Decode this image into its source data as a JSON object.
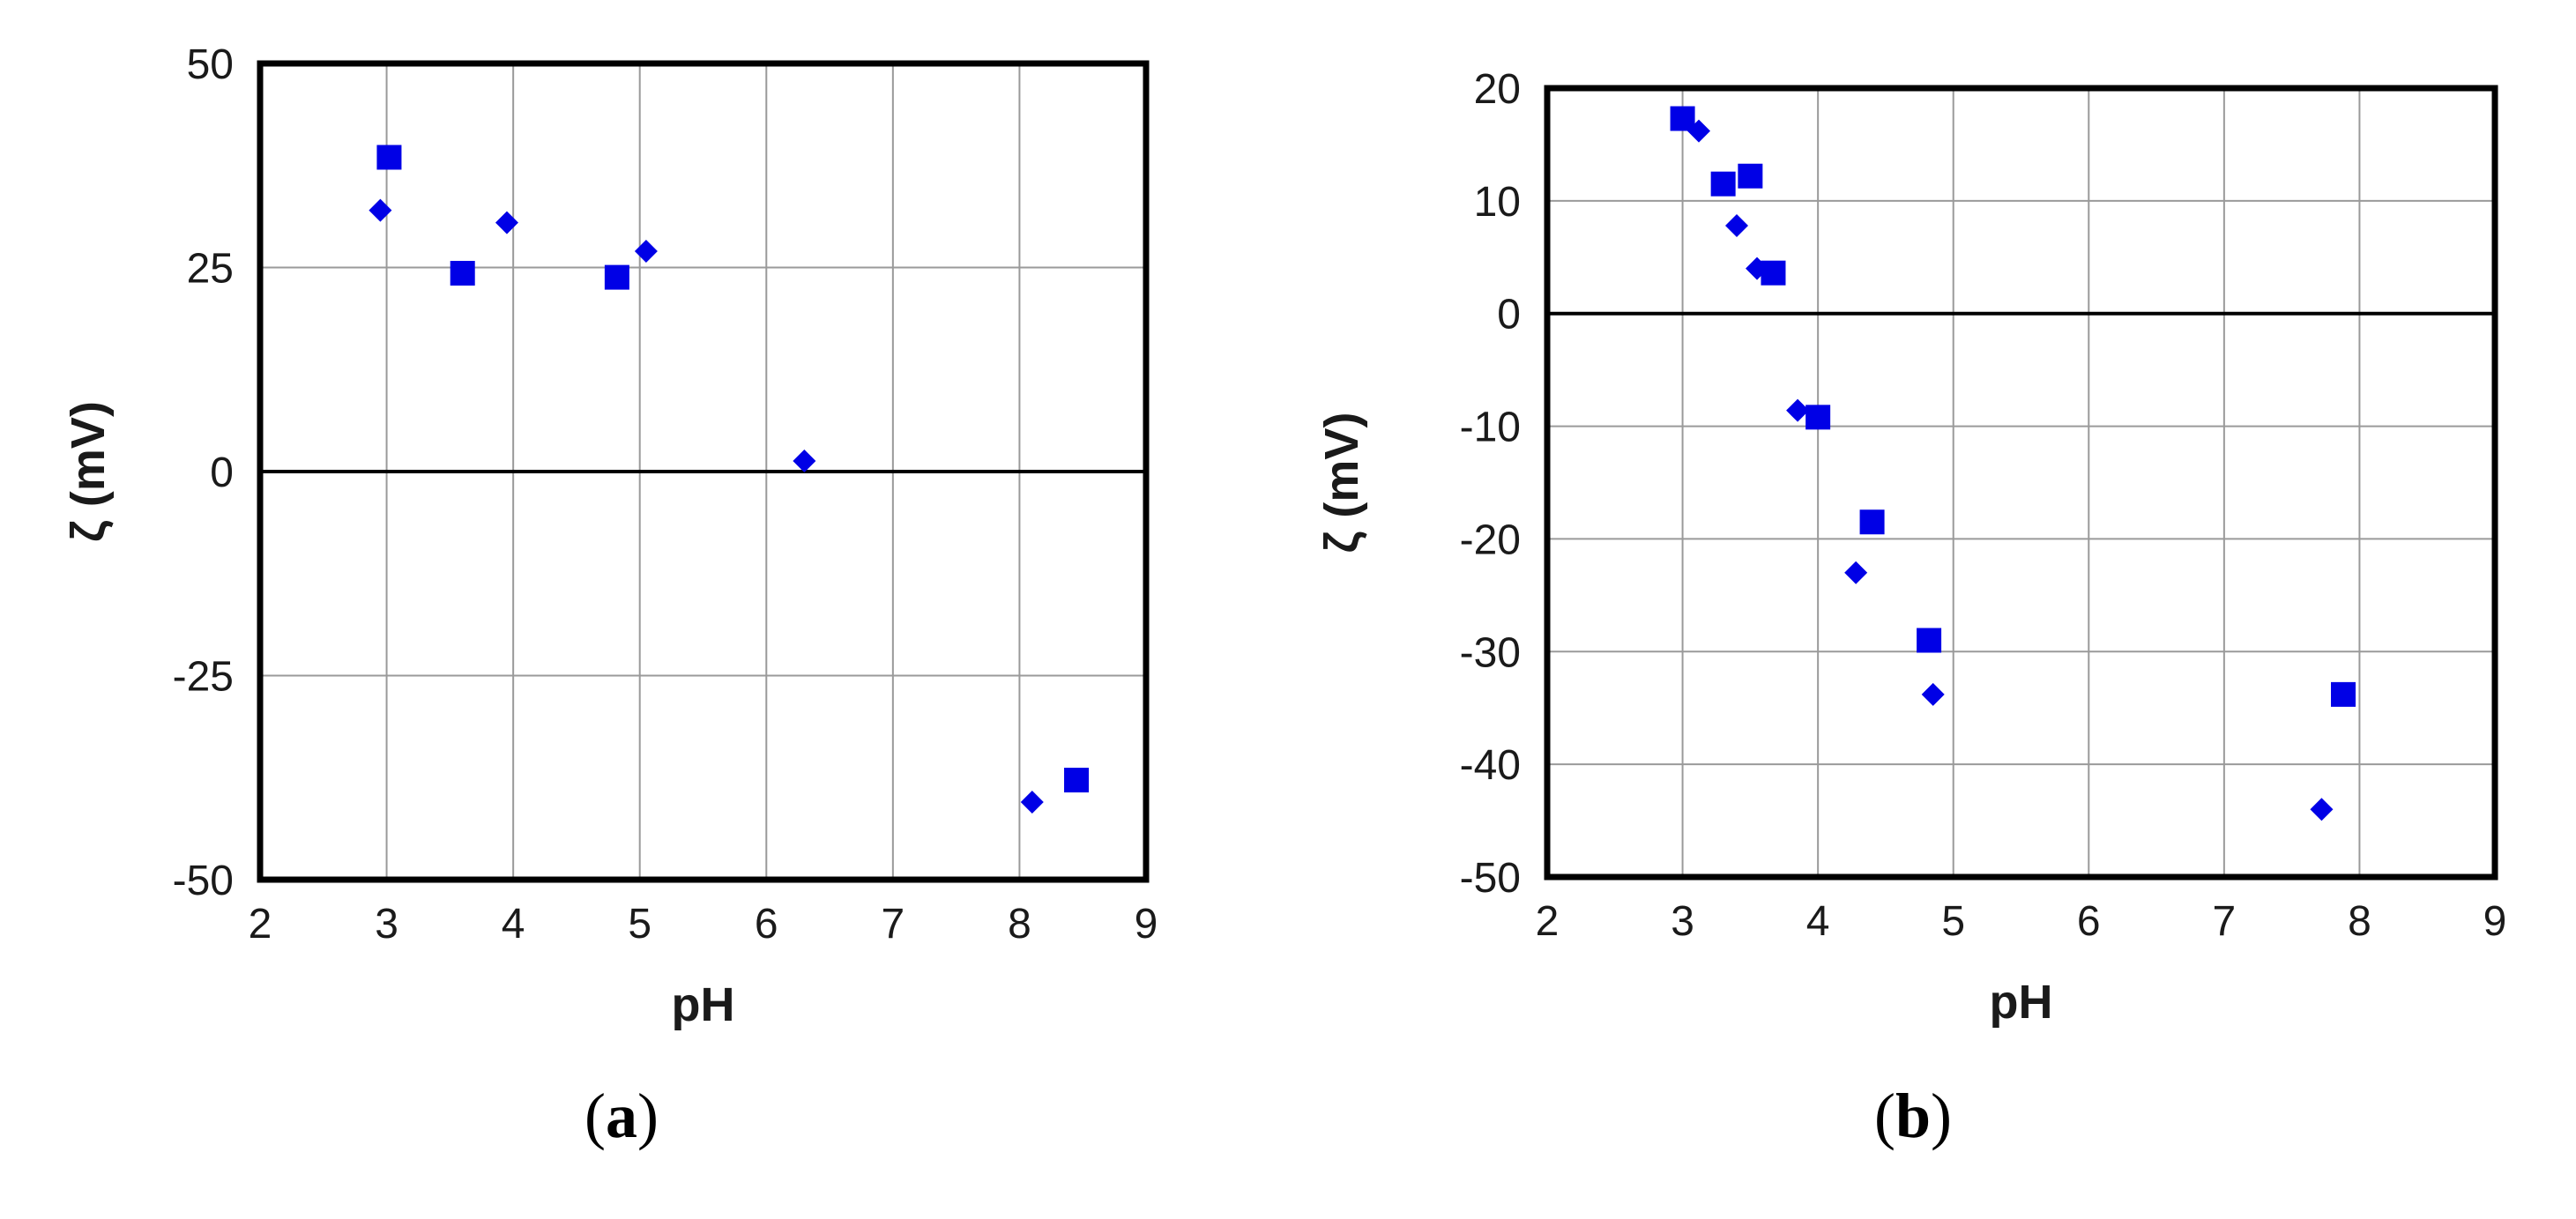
{
  "chart_data": [
    {
      "type": "scatter",
      "panel_label": "a",
      "xlabel": "pH",
      "ylabel": "ζ (mV)",
      "xlim": [
        2,
        9
      ],
      "ylim": [
        -50,
        50
      ],
      "xticks": [
        "2",
        "3",
        "4",
        "5",
        "6",
        "7",
        "8",
        "9"
      ],
      "yticks": [
        "-50",
        "-25",
        "0",
        "25",
        "50"
      ],
      "grid": true,
      "series": [
        {
          "marker": "diamond",
          "color": "#0000E6",
          "x": [
            2.95,
            3.95,
            5.05,
            6.3,
            8.1
          ],
          "y": [
            32,
            30.5,
            27,
            1.3,
            -40.5
          ]
        },
        {
          "marker": "square",
          "color": "#0000E6",
          "x": [
            3.02,
            3.6,
            4.82,
            8.45
          ],
          "y": [
            38.5,
            24.3,
            23.8,
            -37.8
          ]
        }
      ]
    },
    {
      "type": "scatter",
      "panel_label": "b",
      "xlabel": "pH",
      "ylabel": "ζ (mV)",
      "xlim": [
        2,
        9
      ],
      "ylim": [
        -50,
        20
      ],
      "xticks": [
        "2",
        "3",
        "4",
        "5",
        "6",
        "7",
        "8",
        "9"
      ],
      "yticks": [
        "-50",
        "-40",
        "-30",
        "-20",
        "-10",
        "0",
        "10",
        "20"
      ],
      "grid": true,
      "series": [
        {
          "marker": "diamond",
          "color": "#0000E6",
          "x": [
            3.12,
            3.4,
            3.55,
            3.85,
            4.28,
            4.85,
            7.72
          ],
          "y": [
            16.2,
            7.8,
            4.0,
            -8.6,
            -23.0,
            -33.8,
            -44.0
          ]
        },
        {
          "marker": "square",
          "color": "#0000E6",
          "x": [
            3.0,
            3.3,
            3.5,
            3.67,
            4.0,
            4.4,
            4.82,
            7.88
          ],
          "y": [
            17.3,
            11.5,
            12.2,
            3.6,
            -9.2,
            -18.5,
            -29.0,
            -33.8
          ]
        }
      ]
    }
  ]
}
